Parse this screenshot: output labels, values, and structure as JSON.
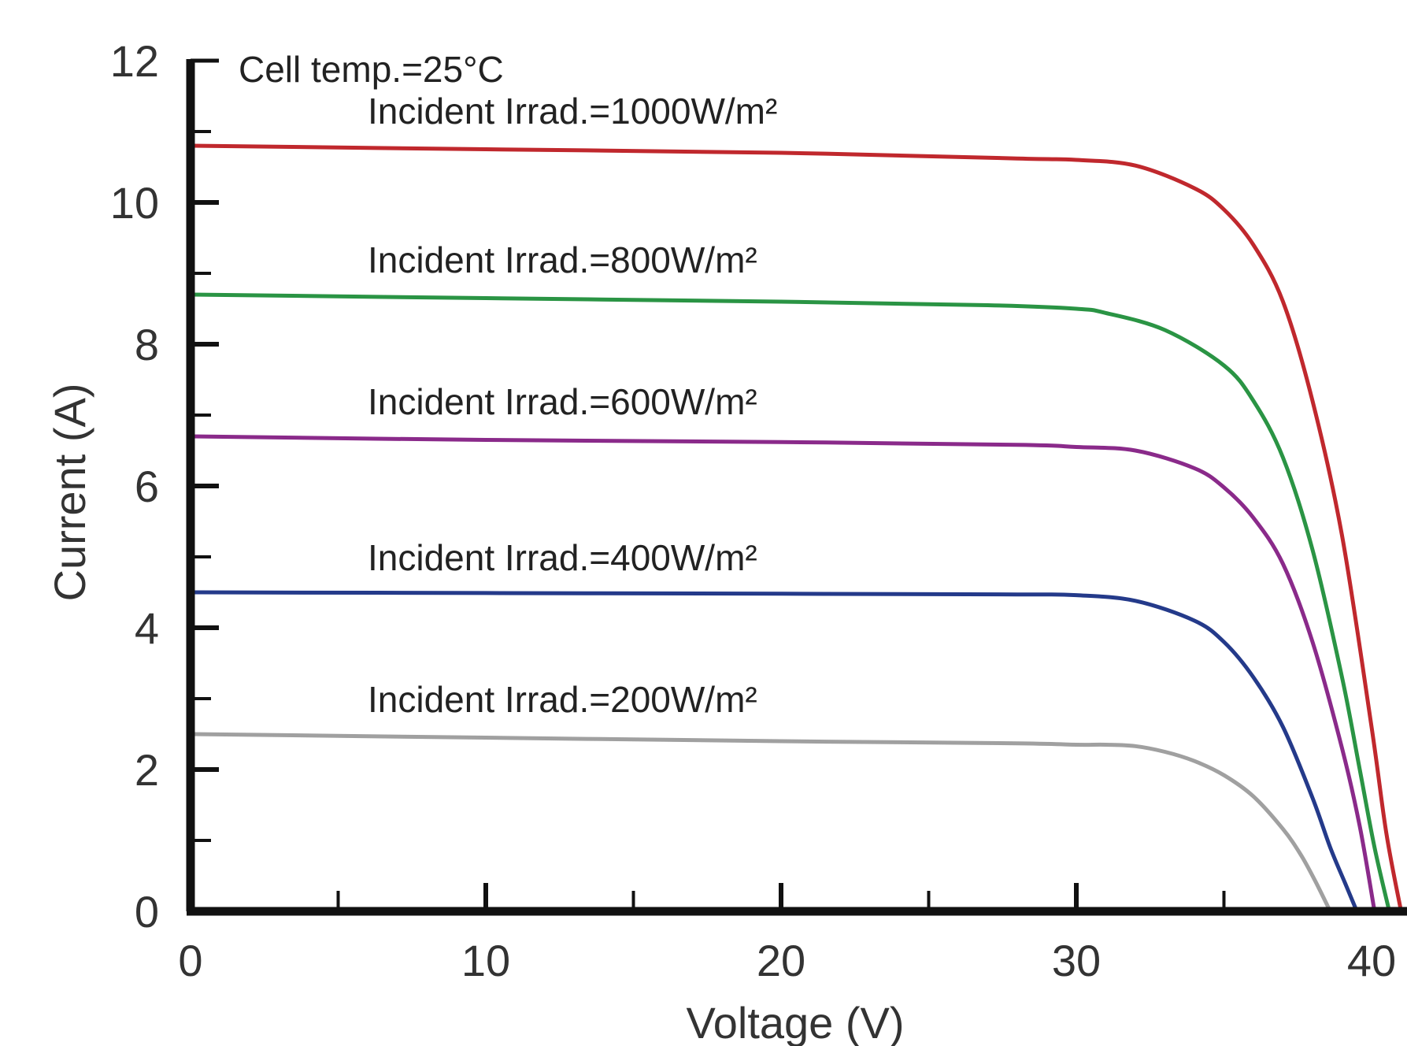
{
  "chart_data": {
    "type": "line",
    "title": "",
    "xlabel": "Voltage (V)",
    "ylabel": "Current (A)",
    "xlim": [
      0,
      40
    ],
    "ylim": [
      0,
      12
    ],
    "x_ticks": [
      "0",
      "10",
      "20",
      "30",
      "40"
    ],
    "y_ticks": [
      "0",
      "2",
      "4",
      "6",
      "8",
      "10",
      "12"
    ],
    "grid": false,
    "legend": "none",
    "annotation": "Cell temp.=25°C",
    "series": [
      {
        "name": "Incident Irrad.=1000W/m²",
        "color": "#c0282d",
        "x": [
          0,
          10,
          20,
          28,
          30,
          32,
          34,
          35,
          36,
          37,
          38,
          39,
          40,
          40.5,
          41
        ],
        "y": [
          10.8,
          10.75,
          10.7,
          10.62,
          10.6,
          10.52,
          10.2,
          9.9,
          9.4,
          8.6,
          7.2,
          5.3,
          2.6,
          1.1,
          0
        ]
      },
      {
        "name": "Incident Irrad.=800W/m²",
        "color": "#2a9444",
        "x": [
          0,
          10,
          20,
          27,
          30,
          31,
          33,
          35,
          36,
          37,
          38,
          39,
          39.6,
          40.1,
          40.6
        ],
        "y": [
          8.7,
          8.65,
          8.6,
          8.55,
          8.5,
          8.44,
          8.2,
          7.7,
          7.2,
          6.4,
          5.1,
          3.3,
          2.0,
          0.9,
          0
        ]
      },
      {
        "name": "Incident Irrad.=600W/m²",
        "color": "#8a2a8a",
        "x": [
          0,
          10,
          20,
          28,
          30,
          32,
          34,
          35,
          36,
          37,
          38,
          39,
          39.6,
          40.1
        ],
        "y": [
          6.7,
          6.65,
          6.62,
          6.58,
          6.55,
          6.5,
          6.25,
          5.98,
          5.55,
          4.9,
          3.8,
          2.3,
          1.2,
          0
        ]
      },
      {
        "name": "Incident Irrad.=400W/m²",
        "color": "#243a8a",
        "x": [
          0,
          10,
          20,
          28,
          30,
          32,
          34,
          35,
          36,
          37,
          38,
          38.6,
          39.1,
          39.5
        ],
        "y": [
          4.5,
          4.49,
          4.48,
          4.47,
          4.46,
          4.38,
          4.1,
          3.8,
          3.3,
          2.6,
          1.6,
          0.9,
          0.4,
          0
        ]
      },
      {
        "name": "Incident Irrad.=200W/m²",
        "color": "#a0a0a0",
        "x": [
          0,
          10,
          20,
          28,
          30,
          31,
          32,
          33,
          34,
          35,
          36,
          37,
          37.6,
          38.1,
          38.6
        ],
        "y": [
          2.5,
          2.45,
          2.4,
          2.37,
          2.35,
          2.35,
          2.33,
          2.25,
          2.12,
          1.92,
          1.62,
          1.16,
          0.8,
          0.42,
          0
        ]
      }
    ]
  }
}
